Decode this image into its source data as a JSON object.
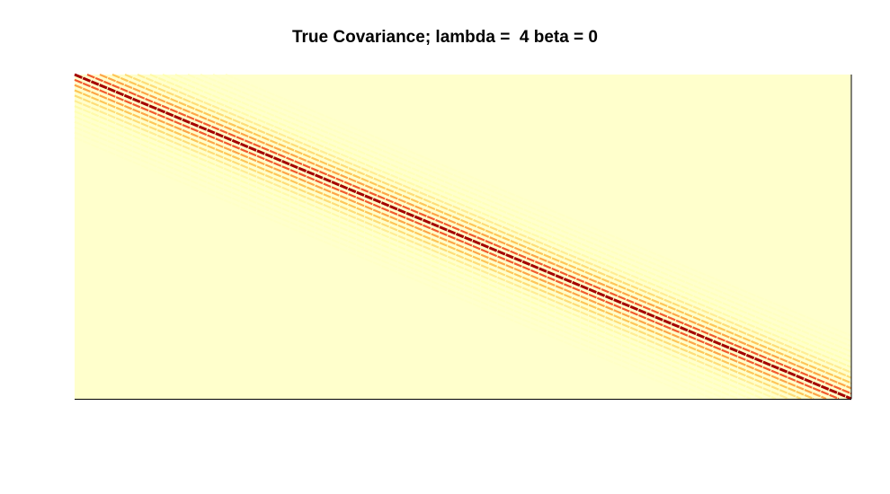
{
  "chart_data": {
    "type": "heatmap",
    "title": "True Covariance; lambda =  4 beta = 0",
    "xlabel": "",
    "ylabel": "",
    "axes_visible": false,
    "grid": false,
    "legend": "none",
    "colors": {
      "background": "#ffffcc",
      "low": "#ffffb2",
      "mid_low": "#fecc5c",
      "mid": "#fd8d3c",
      "high": "#e31a1c",
      "max": "#a40000"
    },
    "structure": {
      "pattern": "banded diagonal",
      "diagonal_value": 1,
      "band_decay_lambda": 4,
      "bands_per_side": 12,
      "band_period_cols": 2
    }
  }
}
